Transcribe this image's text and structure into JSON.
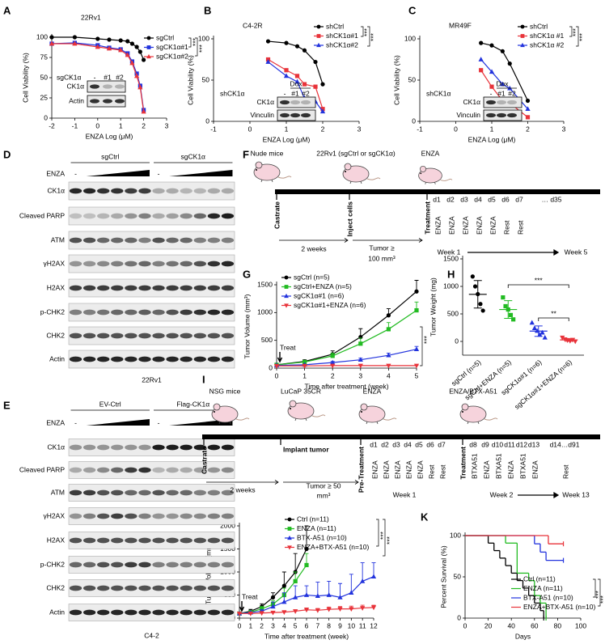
{
  "panel_labels": [
    "A",
    "B",
    "C",
    "D",
    "E",
    "F",
    "G",
    "H",
    "I",
    "J",
    "K"
  ],
  "chart_data": [
    {
      "type": "line",
      "title": "22Rv1",
      "xlabel": "ENZA  Log (μM)",
      "ylabel": "Cell Viability (%)",
      "xlim": [
        -2,
        3
      ],
      "xticks": [
        -2,
        -1,
        0,
        1,
        2,
        3
      ],
      "ylim": [
        0,
        100
      ],
      "yticks": [
        0,
        25,
        50,
        75,
        100
      ],
      "x": [
        -2,
        -1,
        0,
        0.5,
        1,
        1.3,
        1.5,
        1.7,
        1.85,
        2
      ],
      "series": [
        {
          "name": "sgCtrl",
          "color": "#000000",
          "marker": "circle",
          "values": [
            100,
            100,
            98,
            97,
            96,
            95,
            92,
            88,
            82,
            72
          ]
        },
        {
          "name": "sgCK1α#1",
          "color": "#2233dd",
          "marker": "square",
          "values": [
            92,
            93,
            90,
            87,
            85,
            80,
            70,
            55,
            40,
            10
          ]
        },
        {
          "name": "sgCK1α#2",
          "color": "#e8333a",
          "marker": "triangle",
          "values": [
            92,
            92,
            88,
            86,
            84,
            78,
            68,
            52,
            38,
            8
          ]
        }
      ],
      "significance": [
        "***",
        "***"
      ],
      "inset": {
        "label": "sgCK1α",
        "lanes": [
          "-",
          "#1",
          "#2"
        ],
        "bands": [
          "CK1α",
          "Actin"
        ]
      }
    },
    {
      "type": "line",
      "title": "C4-2R",
      "xlabel": "ENZA  Log (μM)",
      "ylabel": "Cell Viability (%)",
      "xlim": [
        -1,
        3
      ],
      "xticks": [
        -1,
        0,
        1,
        2,
        3
      ],
      "ylim": [
        0,
        100
      ],
      "yticks": [
        0,
        50,
        100
      ],
      "x": [
        0.5,
        1,
        1.3,
        1.5,
        1.8,
        2
      ],
      "series": [
        {
          "name": "shCtrl",
          "color": "#000000",
          "marker": "circle",
          "values": [
            97,
            95,
            91,
            86,
            72,
            45
          ]
        },
        {
          "name": "shCK1α#1",
          "color": "#e8333a",
          "marker": "square",
          "values": [
            75,
            62,
            55,
            45,
            42,
            15
          ]
        },
        {
          "name": "shCK1α#2",
          "color": "#2233dd",
          "marker": "triangle",
          "values": [
            72,
            55,
            48,
            28,
            24,
            12
          ]
        }
      ],
      "significance": [
        "***",
        "***"
      ],
      "inset": {
        "label": "shCK1α",
        "treatment": "Dox",
        "lanes": [
          "-",
          "#1",
          "#2"
        ],
        "bands": [
          "CK1α",
          "Vinculin"
        ]
      }
    },
    {
      "type": "line",
      "title": "MR49F",
      "xlabel": "ENZA  Log (μM)",
      "ylabel": "Cell Viability (%)",
      "xlim": [
        -1,
        3
      ],
      "xticks": [
        -1,
        0,
        1,
        2,
        3
      ],
      "ylim": [
        0,
        100
      ],
      "yticks": [
        0,
        50,
        100
      ],
      "x": [
        0.7,
        1,
        1.3,
        1.5,
        2
      ],
      "series": [
        {
          "name": "shCtrl",
          "color": "#000000",
          "marker": "circle",
          "values": [
            95,
            92,
            85,
            70,
            25
          ]
        },
        {
          "name": "shCK1α #1",
          "color": "#e8333a",
          "marker": "square",
          "values": [
            62,
            42,
            25,
            22,
            5
          ]
        },
        {
          "name": "shCK1α #2",
          "color": "#2233dd",
          "marker": "triangle",
          "values": [
            75,
            60,
            45,
            40,
            15
          ]
        }
      ],
      "significance": [
        "***",
        "***"
      ],
      "inset": {
        "label": "shCK1α",
        "treatment": "Dox",
        "lanes": [
          "-",
          "#1",
          "#2"
        ],
        "bands": [
          "CK1α",
          "Vinculin"
        ]
      }
    },
    {
      "type": "line",
      "xlabel": "Time after treatment (week)",
      "ylabel": "Tumor Volume (mm³)",
      "xlim": [
        0,
        5
      ],
      "xticks": [
        0,
        1,
        2,
        3,
        4,
        5
      ],
      "ylim": [
        0,
        1500
      ],
      "yticks": [
        0,
        500,
        1000,
        1500
      ],
      "x": [
        0,
        1,
        2,
        3,
        4,
        5
      ],
      "series": [
        {
          "name": "sgCtrl (n=5)",
          "color": "#000000",
          "marker": "circle",
          "values": [
            60,
            120,
            250,
            560,
            950,
            1380
          ],
          "errors": [
            10,
            30,
            60,
            150,
            120,
            200
          ]
        },
        {
          "name": "sgCtrl+ENZA (n=5)",
          "color": "#22bb22",
          "marker": "square",
          "values": [
            60,
            110,
            220,
            440,
            700,
            1040
          ],
          "errors": [
            10,
            20,
            50,
            100,
            120,
            150
          ]
        },
        {
          "name": "sgCK1α#1 (n=6)",
          "color": "#2233dd",
          "marker": "triangle",
          "values": [
            50,
            60,
            100,
            150,
            230,
            340
          ],
          "errors": [
            5,
            10,
            20,
            30,
            40,
            50
          ]
        },
        {
          "name": "sgCK1α#1+ENZA (n=6)",
          "color": "#e8333a",
          "marker": "triangle-down",
          "values": [
            40,
            40,
            45,
            45,
            45,
            45
          ],
          "errors": [
            5,
            5,
            5,
            5,
            5,
            5
          ]
        }
      ],
      "annotation": "Treat",
      "significance": [
        "***"
      ]
    },
    {
      "type": "dot",
      "ylabel": "Tumor Weight (mg)",
      "categories": [
        "sgCtrl (n=5)",
        "sgCtrl+ENZA (n=5)",
        "sgCK1α#1 (n=6)",
        "sgCK1α#1+ENZA (n=6)"
      ],
      "ylim": [
        -250,
        1500
      ],
      "yticks": [
        0,
        500,
        1000,
        1500
      ],
      "colors": [
        "#000000",
        "#22bb22",
        "#2233dd",
        "#e8333a"
      ],
      "markers": [
        "circle",
        "square",
        "triangle",
        "triangle-down"
      ],
      "points": [
        [
          1180,
          1000,
          860,
          680,
          560
        ],
        [
          800,
          640,
          580,
          480,
          400
        ],
        [
          340,
          240,
          190,
          120,
          160,
          70
        ],
        [
          70,
          40,
          20,
          10,
          30,
          0
        ]
      ],
      "means": [
        856,
        580,
        187,
        28
      ],
      "sd": [
        250,
        160,
        95,
        25
      ],
      "significance": [
        "***",
        "**"
      ]
    },
    {
      "type": "line",
      "xlabel": "Time after treatment (week)",
      "ylabel": "Tumor Volume (mm³)",
      "xlim": [
        0,
        12
      ],
      "xticks": [
        0,
        1,
        2,
        3,
        4,
        5,
        6,
        7,
        8,
        9,
        10,
        11,
        12
      ],
      "ylim": [
        0,
        2000
      ],
      "yticks": [
        0,
        500,
        1000,
        1500,
        2000
      ],
      "x": [
        0,
        1,
        2,
        3,
        4,
        5,
        6,
        7,
        8,
        9,
        10,
        11,
        12
      ],
      "series": [
        {
          "name": "Ctrl (n=11)",
          "color": "#000000",
          "marker": "circle",
          "values": [
            100,
            150,
            250,
            450,
            700,
            1000,
            1500,
            null,
            null,
            null,
            null,
            null,
            null
          ],
          "errors": [
            20,
            40,
            60,
            100,
            300,
            400,
            500,
            null,
            null,
            null,
            null,
            null,
            null
          ]
        },
        {
          "name": "ENZA (n=11)",
          "color": "#22bb22",
          "marker": "square",
          "values": [
            100,
            130,
            200,
            300,
            500,
            800,
            1150,
            null,
            null,
            null,
            null,
            null,
            null
          ],
          "errors": [
            20,
            30,
            50,
            80,
            150,
            200,
            250,
            null,
            null,
            null,
            null,
            null,
            null
          ]
        },
        {
          "name": "BTX-A51 (n=10)",
          "color": "#2233dd",
          "marker": "triangle",
          "values": [
            100,
            120,
            150,
            250,
            350,
            450,
            500,
            480,
            500,
            450,
            550,
            800,
            900
          ],
          "errors": [
            20,
            20,
            30,
            100,
            200,
            250,
            200,
            300,
            300,
            300,
            400,
            400,
            300
          ]
        },
        {
          "name": "ENZA+BTX-A51 (n=10)",
          "color": "#e8333a",
          "marker": "triangle-down",
          "values": [
            100,
            100,
            110,
            120,
            130,
            150,
            180,
            170,
            190,
            200,
            200,
            220,
            230
          ],
          "errors": [
            10,
            10,
            10,
            20,
            20,
            30,
            40,
            40,
            50,
            50,
            60,
            60,
            50
          ]
        }
      ],
      "annotation": "Treat",
      "significance": [
        "***",
        "***"
      ]
    },
    {
      "type": "step",
      "xlabel": "Days",
      "ylabel": "Percent Survival (%)",
      "xlim": [
        0,
        100
      ],
      "xticks": [
        0,
        20,
        40,
        60,
        80,
        100
      ],
      "ylim": [
        0,
        100
      ],
      "yticks": [
        0,
        50,
        100
      ],
      "series": [
        {
          "name": "Ctrl (n=11)",
          "color": "#000000",
          "x": [
            0,
            20,
            25,
            30,
            35,
            40,
            45,
            50,
            55,
            60,
            65,
            68
          ],
          "values": [
            100,
            90.9,
            81.8,
            72.7,
            63.6,
            54.5,
            45.5,
            36.4,
            27.3,
            18.2,
            9.1,
            0
          ]
        },
        {
          "name": "ENZA (n=11)",
          "color": "#22bb22",
          "x": [
            0,
            35,
            45,
            55,
            60,
            65,
            70
          ],
          "values": [
            100,
            90.9,
            54.5,
            45.5,
            27.3,
            18.2,
            0
          ]
        },
        {
          "name": "BTX-A51 (n=10)",
          "color": "#2233dd",
          "x": [
            0,
            60,
            65,
            70,
            85
          ],
          "values": [
            100,
            90,
            80,
            70,
            70
          ]
        },
        {
          "name": "ENZA+BTX-A51 (n=10)",
          "color": "#e8333a",
          "x": [
            0,
            72,
            85
          ],
          "values": [
            100,
            90,
            90
          ]
        }
      ],
      "significance": [
        "***",
        "***"
      ]
    }
  ],
  "blots": [
    {
      "caption": "22Rv1",
      "groups": [
        "sgCtrl",
        "sgCK1α"
      ],
      "treatment": "ENZA",
      "untreated": [
        "-",
        "-"
      ],
      "rows": [
        "CK1α",
        "Cleaved PARP",
        "ATM",
        "γH2AX",
        "H2AX",
        "p-CHK2",
        "CHK2",
        "Actin"
      ]
    },
    {
      "caption": "C4-2",
      "groups": [
        "EV-Ctrl",
        "Flag-CK1α"
      ],
      "treatment": "ENZA",
      "untreated": [
        "-",
        "-"
      ],
      "rows": [
        "CK1α",
        "Cleaved PARP",
        "ATM",
        "γH2AX",
        "H2AX",
        "p-CHK2",
        "CHK2",
        "Actin"
      ]
    }
  ],
  "schemes": [
    {
      "mice": [
        "Nude mice",
        "22Rv1 (sgCtrl or sgCK1α)",
        "ENZA"
      ],
      "steps": [
        "Castrate",
        "Inject cells",
        "Treatment"
      ],
      "intervals": [
        "2 weeks"
      ],
      "condition": [
        "Tumor ≥",
        "100 mm³"
      ],
      "days": [
        "d1",
        "d2",
        "d3",
        "d4",
        "d5",
        "d6",
        "d7",
        "… d35"
      ],
      "treatments": [
        {
          "label": "ENZA",
          "color": "#e02020"
        },
        {
          "label": "ENZA",
          "color": "#e02020"
        },
        {
          "label": "ENZA",
          "color": "#e02020"
        },
        {
          "label": "ENZA",
          "color": "#e02020"
        },
        {
          "label": "ENZA",
          "color": "#e02020"
        },
        {
          "label": "Rest",
          "color": "#2233dd"
        },
        {
          "label": "Rest",
          "color": "#2233dd"
        }
      ],
      "weeks": [
        "Week 1",
        "Week 5"
      ]
    },
    {
      "mice": [
        "NSG mice",
        "LuCaP 35CR",
        "ENZA",
        "ENZA/BTX-A51"
      ],
      "steps": [
        "Castrate",
        "Implant tumor",
        "Pre-Treatment",
        "Treatment"
      ],
      "intervals": [
        "2 weeks"
      ],
      "condition": [
        "Tumor ≥ 50",
        "mm³"
      ],
      "days": [
        "d1",
        "d2",
        "d3",
        "d4",
        "d5",
        "d6",
        "d7",
        "d8",
        "d9",
        "d10",
        "d11",
        "d12",
        "d13",
        "d14…d91"
      ],
      "treatments": [
        {
          "label": "ENZA",
          "color": "#e02020"
        },
        {
          "label": "ENZA",
          "color": "#e02020"
        },
        {
          "label": "ENZA",
          "color": "#e02020"
        },
        {
          "label": "ENZA",
          "color": "#e02020"
        },
        {
          "label": "ENZA",
          "color": "#e02020"
        },
        {
          "label": "Rest",
          "color": "#2233dd"
        },
        {
          "label": "Rest",
          "color": "#2233dd"
        },
        {
          "label": "BTXA51",
          "color": "#22aa22"
        },
        {
          "label": "ENZA",
          "color": "#e02020"
        },
        {
          "label": "BTXA51",
          "color": "#22aa22"
        },
        {
          "label": "ENZA",
          "color": "#e02020"
        },
        {
          "label": "BTXA51",
          "color": "#22aa22"
        },
        {
          "label": "ENZA",
          "color": "#e02020"
        },
        {
          "label": "Rest",
          "color": "#2233dd"
        }
      ],
      "weeks": [
        "Week 1",
        "Week 2",
        "Week 13"
      ]
    }
  ]
}
